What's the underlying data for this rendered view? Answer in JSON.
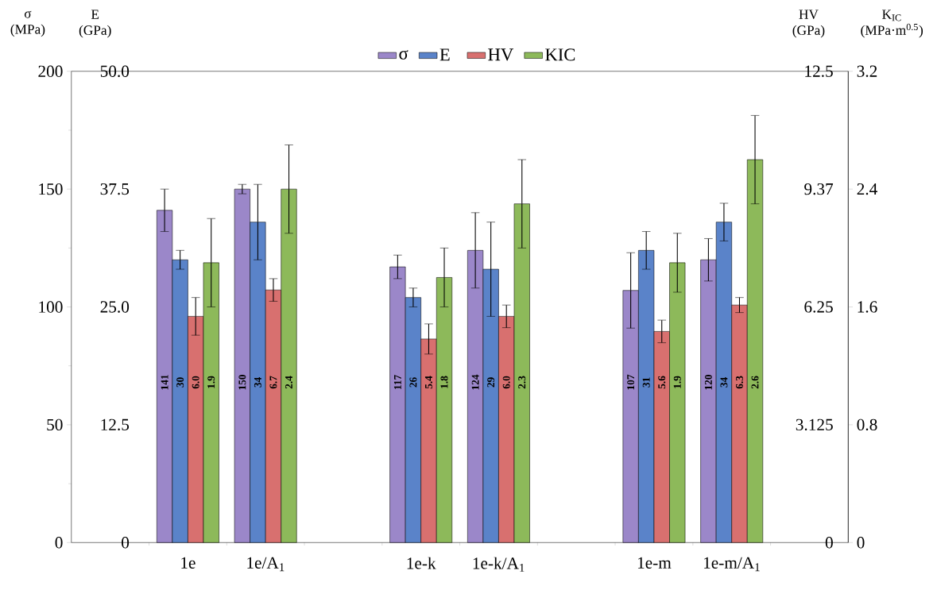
{
  "chart_data": [
    {
      "type": "bar",
      "categories": [
        "1e",
        "1e/A$_{1}$",
        null,
        "1e-k",
        "1e-k/A$_{1}$",
        null,
        "1e-m",
        "1e-m/A$_{1}$"
      ],
      "series": [
        {
          "name": "σ",
          "color": "#9b87c9",
          "values": [
            141,
            150,
            null,
            117,
            124,
            null,
            107,
            120
          ],
          "errors": [
            9,
            2,
            null,
            5,
            16,
            null,
            16,
            9
          ],
          "value_labels": [
            "141",
            "150",
            null,
            "117",
            "124",
            null,
            "107",
            "120"
          ]
        },
        {
          "name": "E",
          "color": "#5a83c9",
          "axis": "y2",
          "values": [
            30,
            34,
            null,
            26,
            29,
            null,
            31,
            34
          ],
          "errors": [
            1,
            4,
            null,
            1,
            5,
            null,
            2,
            2
          ],
          "value_labels": [
            "30",
            "34",
            null,
            "26",
            "29",
            null,
            "31",
            "34"
          ]
        }
      ],
      "ylabel": "σ (MPa)",
      "y2label": "E (GPa)",
      "ylim": [
        0,
        200
      ],
      "yticks": [
        0,
        50,
        100,
        150,
        200
      ],
      "y2lim": [
        0,
        50
      ],
      "y2ticks": [
        0,
        12.5,
        {
          "value": 25,
          "label": "25.0"
        },
        37.5,
        {
          "value": 50,
          "label": "50.0"
        }
      ],
      "legend": "top"
    },
    {
      "type": "bar",
      "categories": [
        null,
        null,
        null,
        null,
        null,
        null,
        null,
        null
      ],
      "series": [
        {
          "name": "HV",
          "color": "#d8706f",
          "values": [
            6.0,
            6.7,
            null,
            5.4,
            6.0,
            null,
            5.6,
            6.3
          ],
          "errors": [
            0.5,
            0.3,
            null,
            0.4,
            0.3,
            null,
            0.3,
            0.2
          ],
          "value_labels": [
            "6.0",
            "6.7",
            null,
            "5.4",
            "6.0",
            null,
            "5.6",
            "6.3"
          ]
        },
        {
          "name": "KIC",
          "color": "#8db95a",
          "axis": "y2",
          "values": [
            1.9,
            2.4,
            null,
            1.8,
            2.3,
            null,
            1.9,
            2.6
          ],
          "errors": [
            0.3,
            0.3,
            null,
            0.2,
            0.3,
            null,
            0.2,
            0.3
          ],
          "value_labels": [
            "1.9",
            "2.4",
            null,
            "1.8",
            "2.3",
            null,
            "1.9",
            "2.6"
          ]
        }
      ],
      "ylabel": "HV (GPa)",
      "y2label": "K$_{IC}$ (MPa·m$^{0.5}$)",
      "ylim": [
        0,
        12.5
      ],
      "yticks": [
        0,
        3.125,
        6.25,
        {
          "value": 9.375,
          "label": "9.37"
        },
        12.5
      ],
      "y2lim": [
        0,
        3.2
      ],
      "y2ticks": [
        0,
        0.8,
        1.6,
        2.4,
        3.2
      ],
      "tick_labels": "y",
      "legend": "top"
    }
  ]
}
